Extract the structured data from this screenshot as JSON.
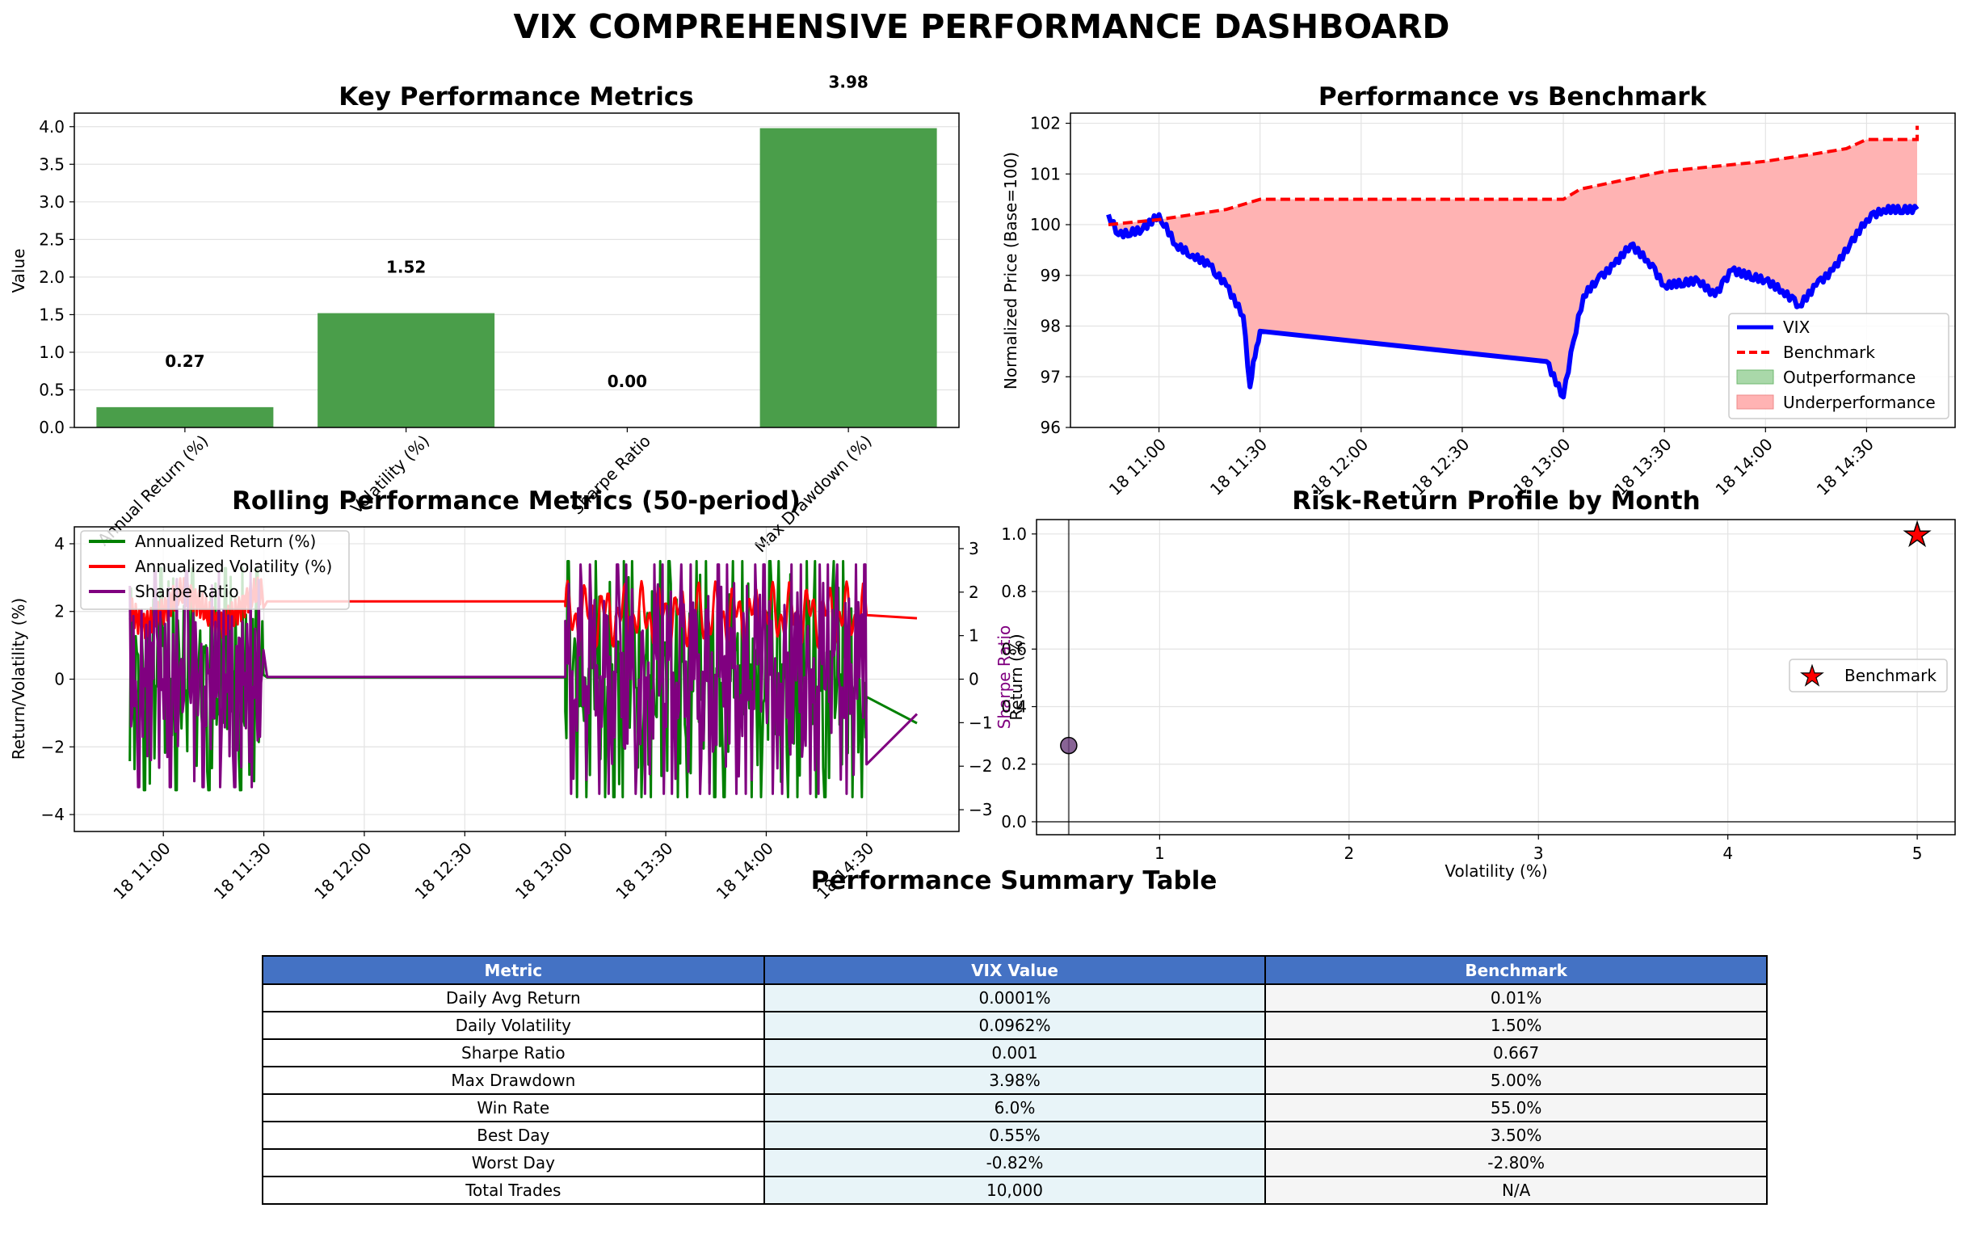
{
  "title": "VIX COMPREHENSIVE PERFORMANCE DASHBOARD",
  "colors": {
    "bar": "#4a9e4a",
    "vix": "#0000ff",
    "benchmark": "#ff0000",
    "outperf": "#a9d8a9",
    "underperf": "#ffb3b3",
    "ret": "#008000",
    "vol": "#ff0000",
    "sharpe": "#800080",
    "header": "#4472c4"
  },
  "chart_data": [
    {
      "type": "bar",
      "title": "Key Performance Metrics",
      "ylabel": "Value",
      "categories": [
        "Annual Return (%)",
        "Volatility (%)",
        "Sharpe Ratio",
        "Max Drawdown (%)"
      ],
      "values": [
        0.27,
        1.52,
        0.0,
        3.98
      ],
      "value_labels": [
        "0.27",
        "1.52",
        "0.00",
        "3.98"
      ],
      "ylim": [
        0,
        4.18
      ],
      "yticks": [
        "0.0",
        "0.5",
        "1.0",
        "1.5",
        "2.0",
        "2.5",
        "3.0",
        "3.5",
        "4.0"
      ],
      "grid": true
    },
    {
      "type": "line",
      "title": "Performance vs Benchmark",
      "ylabel": "Normalized Price (Base=100)",
      "x_range": [
        "10:45",
        "14:45"
      ],
      "ylim": [
        96,
        102.2
      ],
      "yticks": [
        "96",
        "97",
        "98",
        "99",
        "100",
        "101",
        "102"
      ],
      "xticks": [
        "18 11:00",
        "18 11:30",
        "18 12:00",
        "18 12:30",
        "18 13:00",
        "18 13:30",
        "18 14:00",
        "18 14:30"
      ],
      "legend": [
        "VIX",
        "Benchmark",
        "Outperformance",
        "Underperformance"
      ],
      "legend_position": "lower-right",
      "series": [
        {
          "name": "VIX",
          "points": [
            [
              "10:45",
              100.2
            ],
            [
              "10:48",
              99.8
            ],
            [
              "10:55",
              99.9
            ],
            [
              "11:00",
              100.2
            ],
            [
              "11:05",
              99.6
            ],
            [
              "11:10",
              99.4
            ],
            [
              "11:15",
              99.2
            ],
            [
              "11:20",
              98.8
            ],
            [
              "11:25",
              98.2
            ],
            [
              "11:27",
              96.8
            ],
            [
              "11:28",
              97.3
            ],
            [
              "11:29",
              97.6
            ],
            [
              "11:30",
              97.9
            ],
            [
              "12:55",
              97.3
            ],
            [
              "13:00",
              96.6
            ],
            [
              "13:03",
              97.7
            ],
            [
              "13:06",
              98.6
            ],
            [
              "13:10",
              98.9
            ],
            [
              "13:15",
              99.2
            ],
            [
              "13:20",
              99.6
            ],
            [
              "13:25",
              99.3
            ],
            [
              "13:30",
              98.8
            ],
            [
              "13:40",
              98.9
            ],
            [
              "13:45",
              98.6
            ],
            [
              "13:50",
              99.1
            ],
            [
              "14:00",
              98.9
            ],
            [
              "14:05",
              98.7
            ],
            [
              "14:10",
              98.4
            ],
            [
              "14:15",
              98.8
            ],
            [
              "14:20",
              99.1
            ],
            [
              "14:25",
              99.6
            ],
            [
              "14:30",
              100.1
            ],
            [
              "14:35",
              100.3
            ],
            [
              "14:45",
              100.3
            ]
          ]
        },
        {
          "name": "Benchmark",
          "points": [
            [
              "10:45",
              100.0
            ],
            [
              "11:00",
              100.1
            ],
            [
              "11:20",
              100.3
            ],
            [
              "11:30",
              100.5
            ],
            [
              "13:00",
              100.5
            ],
            [
              "13:05",
              100.7
            ],
            [
              "13:30",
              101.05
            ],
            [
              "14:00",
              101.25
            ],
            [
              "14:15",
              101.4
            ],
            [
              "14:24",
              101.5
            ],
            [
              "14:30",
              101.68
            ],
            [
              "14:45",
              101.68
            ],
            [
              "14:45",
              101.95
            ]
          ]
        }
      ]
    },
    {
      "type": "line",
      "title": "Rolling Performance Metrics (50-period)",
      "ylabel": "Return/Volatility (%)",
      "ylabel_right": "Sharpe Ratio",
      "x_range": [
        "10:45",
        "14:45"
      ],
      "ylim": [
        -4.5,
        4.5
      ],
      "ylim_right": [
        -3.5,
        3.5
      ],
      "yticks": [
        "−4",
        "−2",
        "0",
        "2",
        "4"
      ],
      "yticks_right": [
        "−3",
        "−2",
        "−1",
        "0",
        "1",
        "2",
        "3"
      ],
      "xticks": [
        "18 11:00",
        "18 11:30",
        "18 12:00",
        "18 12:30",
        "18 13:00",
        "18 13:30",
        "18 14:00",
        "18 14:30"
      ],
      "legend": [
        "Annualized Return (%)",
        "Annualized Volatility (%)",
        "Sharpe Ratio"
      ],
      "legend_position": "upper-left",
      "series": [
        {
          "name": "Annualized Return (%)",
          "active_windows": [
            [
              "10:50",
              "11:30"
            ],
            [
              "13:00",
              "14:30"
            ]
          ],
          "range": [
            -4.1,
            4.1
          ],
          "rest": 0.05,
          "tail_end": -1.3
        },
        {
          "name": "Annualized Volatility (%)",
          "active_windows": [
            [
              "10:50",
              "11:30"
            ],
            [
              "13:00",
              "14:30"
            ]
          ],
          "range": [
            0.9,
            3.0
          ],
          "rest": 2.3,
          "tail_end": 1.8
        },
        {
          "name": "Sharpe Ratio",
          "active_windows": [
            [
              "10:50",
              "11:30"
            ],
            [
              "13:00",
              "14:30"
            ]
          ],
          "range": [
            -3.1,
            3.1
          ],
          "rest": 0.05,
          "tail_end": -0.8
        }
      ]
    },
    {
      "type": "scatter",
      "title": "Risk-Return Profile by Month",
      "xlabel": "Volatility (%)",
      "ylabel": "Return (%)",
      "xlim": [
        0.35,
        5.2
      ],
      "ylim": [
        -0.045,
        1.05
      ],
      "xticks": [
        "1",
        "2",
        "3",
        "4",
        "5"
      ],
      "yticks": [
        "0.0",
        "0.2",
        "0.4",
        "0.6",
        "0.8",
        "1.0"
      ],
      "points": [
        {
          "x": 0.52,
          "y": 0.265,
          "kind": "month"
        }
      ],
      "benchmark": {
        "name": "Benchmark",
        "x": 5.0,
        "y": 1.0
      },
      "legend_position": "center-right"
    }
  ],
  "table": {
    "title": "Performance Summary Table",
    "headers": [
      "Metric",
      "VIX Value",
      "Benchmark"
    ],
    "rows": [
      [
        "Daily Avg Return",
        "0.0001%",
        "0.01%"
      ],
      [
        "Daily Volatility",
        "0.0962%",
        "1.50%"
      ],
      [
        "Sharpe Ratio",
        "0.001",
        "0.667"
      ],
      [
        "Max Drawdown",
        "3.98%",
        "5.00%"
      ],
      [
        "Win Rate",
        "6.0%",
        "55.0%"
      ],
      [
        "Best Day",
        "0.55%",
        "3.50%"
      ],
      [
        "Worst Day",
        "-0.82%",
        "-2.80%"
      ],
      [
        "Total Trades",
        "10,000",
        "N/A"
      ]
    ]
  }
}
